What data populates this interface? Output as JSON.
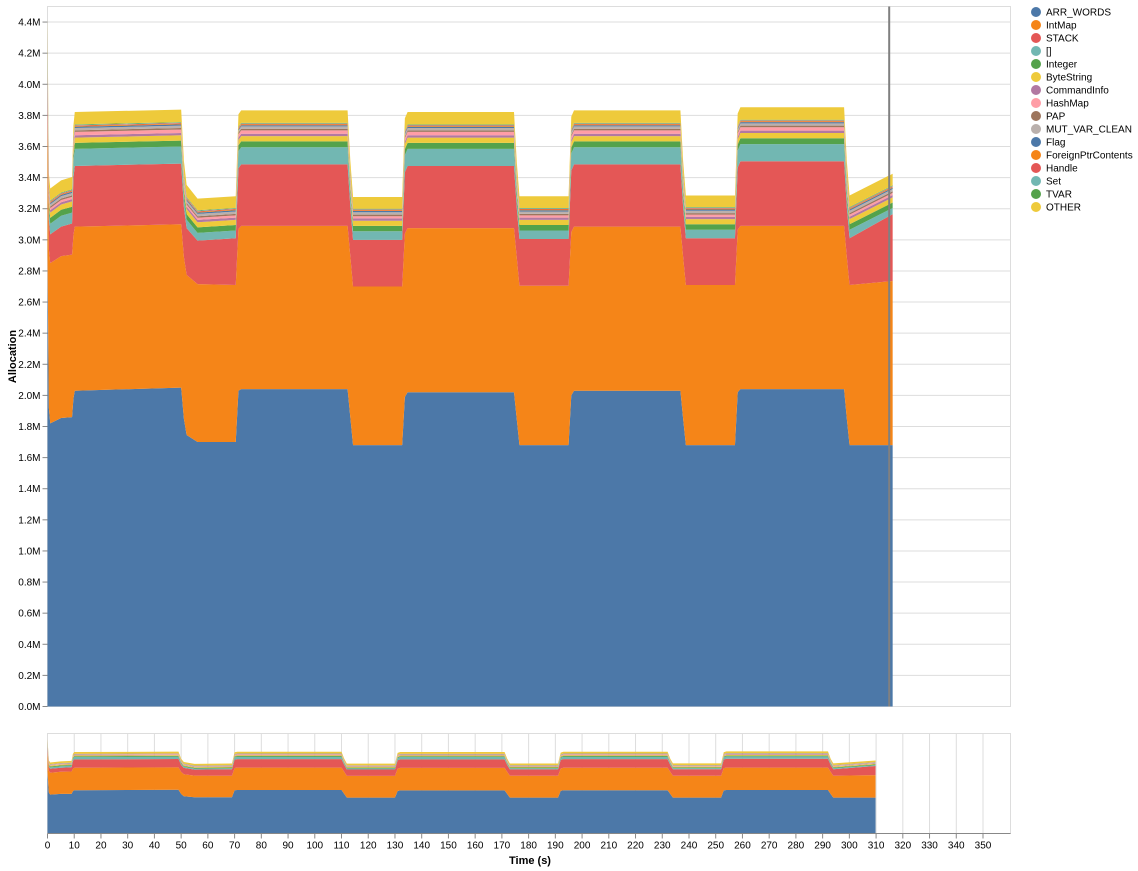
{
  "chart_data": {
    "type": "area",
    "stacked": true,
    "xlabel": "Time (s)",
    "ylabel": "Allocation",
    "x_unit": "s",
    "y_unit": "bytes",
    "main_xlim": [
      0,
      353
    ],
    "main_ylim": [
      0,
      4500000
    ],
    "main_yticks": [
      {
        "value": 0,
        "label": "0.0M"
      },
      {
        "value": 200000,
        "label": "0.2M"
      },
      {
        "value": 400000,
        "label": "0.4M"
      },
      {
        "value": 600000,
        "label": "0.6M"
      },
      {
        "value": 800000,
        "label": "0.8M"
      },
      {
        "value": 1000000,
        "label": "1.0M"
      },
      {
        "value": 1200000,
        "label": "1.2M"
      },
      {
        "value": 1400000,
        "label": "1.4M"
      },
      {
        "value": 1600000,
        "label": "1.6M"
      },
      {
        "value": 1800000,
        "label": "1.8M"
      },
      {
        "value": 2000000,
        "label": "2.0M"
      },
      {
        "value": 2200000,
        "label": "2.2M"
      },
      {
        "value": 2400000,
        "label": "2.4M"
      },
      {
        "value": 2600000,
        "label": "2.6M"
      },
      {
        "value": 2800000,
        "label": "2.8M"
      },
      {
        "value": 3000000,
        "label": "3.0M"
      },
      {
        "value": 3200000,
        "label": "3.2M"
      },
      {
        "value": 3400000,
        "label": "3.4M"
      },
      {
        "value": 3600000,
        "label": "3.6M"
      },
      {
        "value": 3800000,
        "label": "3.8M"
      },
      {
        "value": 4000000,
        "label": "4.0M"
      },
      {
        "value": 4200000,
        "label": "4.2M"
      },
      {
        "value": 4400000,
        "label": "4.4M"
      }
    ],
    "overview_xlim": [
      0,
      350
    ],
    "overview_xticks": [
      0,
      10,
      20,
      30,
      40,
      50,
      60,
      70,
      80,
      90,
      100,
      110,
      120,
      130,
      140,
      150,
      160,
      170,
      180,
      190,
      200,
      210,
      220,
      230,
      240,
      250,
      260,
      270,
      280,
      290,
      300,
      310,
      320,
      330,
      340,
      350
    ],
    "selection_marker_x": 310,
    "legend_position": "right",
    "grid": true,
    "x": [
      0,
      0.5,
      1,
      5,
      9,
      9.5,
      10,
      49,
      50,
      51,
      55,
      69,
      70,
      71,
      110,
      111,
      112,
      130,
      131,
      132,
      171,
      172,
      173,
      191,
      192,
      193,
      232,
      233,
      234,
      252,
      253,
      254,
      292,
      293,
      294,
      309.8
    ],
    "series": [
      {
        "name": "ARR_WORDS",
        "color": "#4c78a8",
        "values": [
          2900000,
          1920000,
          1820000,
          1855000,
          1860000,
          1980000,
          2030000,
          2050000,
          1850000,
          1745000,
          1700000,
          1700000,
          2030000,
          2040000,
          2040000,
          1860000,
          1680000,
          1680000,
          1990000,
          2020000,
          2020000,
          1850000,
          1680000,
          1680000,
          2000000,
          2030000,
          2030000,
          1850000,
          1680000,
          1680000,
          2020000,
          2040000,
          2040000,
          1850000,
          1680000,
          1680000
        ]
      },
      {
        "name": "IntMap",
        "color": "#f58518",
        "values": [
          1000000,
          1020000,
          1030000,
          1040000,
          1045000,
          1050000,
          1055000,
          1050000,
          1040000,
          1030000,
          1015000,
          1010000,
          1040000,
          1050000,
          1050000,
          1035000,
          1020000,
          1020000,
          1050000,
          1055000,
          1055000,
          1040000,
          1025000,
          1025000,
          1050000,
          1055000,
          1055000,
          1040000,
          1030000,
          1030000,
          1045000,
          1050000,
          1050000,
          1040000,
          1030000,
          1055000
        ]
      },
      {
        "name": "STACK",
        "color": "#e45756",
        "values": [
          210000,
          190000,
          185000,
          190000,
          200000,
          370000,
          390000,
          390000,
          320000,
          300000,
          280000,
          300000,
          390000,
          395000,
          395000,
          320000,
          300000,
          300000,
          395000,
          400000,
          400000,
          320000,
          300000,
          300000,
          395000,
          400000,
          400000,
          320000,
          300000,
          300000,
          400000,
          415000,
          415000,
          320000,
          300000,
          430000
        ]
      },
      {
        "name": "[]",
        "color": "#72b7b2",
        "values": [
          80000,
          70000,
          68000,
          70000,
          70000,
          100000,
          110000,
          110000,
          70000,
          55000,
          50000,
          50000,
          110000,
          110000,
          110000,
          70000,
          55000,
          55000,
          110000,
          110000,
          110000,
          70000,
          55000,
          55000,
          110000,
          110000,
          110000,
          70000,
          55000,
          55000,
          110000,
          110000,
          110000,
          70000,
          55000,
          40000
        ]
      },
      {
        "name": "Integer",
        "color": "#54a24b",
        "values": [
          40000,
          38000,
          38000,
          38000,
          38000,
          38000,
          38000,
          38000,
          36000,
          35000,
          35000,
          35000,
          38000,
          38000,
          38000,
          36000,
          35000,
          35000,
          38000,
          38000,
          38000,
          36000,
          35000,
          35000,
          38000,
          38000,
          38000,
          36000,
          35000,
          35000,
          38000,
          38000,
          38000,
          36000,
          35000,
          35000
        ]
      },
      {
        "name": "ByteString",
        "color": "#eeca3b",
        "values": [
          35000,
          34000,
          34000,
          34000,
          34000,
          34000,
          34000,
          34000,
          33000,
          33000,
          33000,
          33000,
          34000,
          34000,
          34000,
          33000,
          33000,
          33000,
          34000,
          34000,
          34000,
          33000,
          33000,
          33000,
          34000,
          34000,
          34000,
          33000,
          33000,
          33000,
          34000,
          34000,
          34000,
          33000,
          33000,
          33000
        ]
      },
      {
        "name": "CommandInfo",
        "color": "#b279a2",
        "values": [
          15000,
          15000,
          15000,
          15000,
          15000,
          15000,
          15000,
          15000,
          15000,
          15000,
          15000,
          15000,
          15000,
          15000,
          15000,
          15000,
          15000,
          15000,
          15000,
          15000,
          15000,
          15000,
          15000,
          15000,
          15000,
          15000,
          15000,
          15000,
          15000,
          15000,
          15000,
          15000,
          15000,
          15000,
          15000,
          15000
        ]
      },
      {
        "name": "HashMap",
        "color": "#ff9da6",
        "values": [
          15000,
          14000,
          14000,
          14000,
          14000,
          20000,
          22000,
          22000,
          15000,
          14000,
          14000,
          14000,
          22000,
          22000,
          22000,
          15000,
          14000,
          14000,
          22000,
          22000,
          22000,
          15000,
          14000,
          14000,
          22000,
          22000,
          22000,
          15000,
          14000,
          14000,
          22000,
          22000,
          22000,
          15000,
          14000,
          14000
        ]
      },
      {
        "name": "PAP",
        "color": "#9d755d",
        "values": [
          10000,
          10000,
          10000,
          10000,
          10000,
          10000,
          10000,
          10000,
          10000,
          10000,
          10000,
          10000,
          10000,
          10000,
          10000,
          10000,
          10000,
          10000,
          10000,
          10000,
          10000,
          10000,
          10000,
          10000,
          10000,
          10000,
          10000,
          10000,
          10000,
          10000,
          10000,
          10000,
          10000,
          10000,
          10000,
          10000
        ]
      },
      {
        "name": "MUT_VAR_CLEAN",
        "color": "#bab0ac",
        "values": [
          15000,
          15000,
          15000,
          15000,
          15000,
          15000,
          15000,
          15000,
          15000,
          15000,
          15000,
          15000,
          15000,
          15000,
          15000,
          15000,
          15000,
          15000,
          15000,
          15000,
          15000,
          15000,
          15000,
          15000,
          15000,
          15000,
          15000,
          15000,
          15000,
          15000,
          15000,
          15000,
          15000,
          15000,
          15000,
          15000
        ]
      },
      {
        "name": "Flag",
        "color": "#4c78a8",
        "values": [
          8000,
          8000,
          8000,
          8000,
          8000,
          8000,
          8000,
          8000,
          8000,
          8000,
          8000,
          8000,
          8000,
          8000,
          8000,
          8000,
          8000,
          8000,
          8000,
          8000,
          8000,
          8000,
          8000,
          8000,
          8000,
          8000,
          8000,
          8000,
          8000,
          8000,
          8000,
          8000,
          8000,
          8000,
          8000,
          8000
        ]
      },
      {
        "name": "ForeignPtrContents",
        "color": "#f58518",
        "values": [
          5000,
          5000,
          5000,
          5000,
          5000,
          5000,
          5000,
          5000,
          5000,
          5000,
          5000,
          5000,
          5000,
          5000,
          5000,
          5000,
          5000,
          5000,
          5000,
          5000,
          5000,
          5000,
          5000,
          5000,
          5000,
          5000,
          5000,
          5000,
          5000,
          5000,
          5000,
          5000,
          5000,
          5000,
          5000,
          5000
        ]
      },
      {
        "name": "Handle",
        "color": "#e45756",
        "values": [
          4000,
          4000,
          4000,
          4000,
          4000,
          4000,
          4000,
          4000,
          4000,
          4000,
          4000,
          4000,
          4000,
          4000,
          4000,
          4000,
          4000,
          4000,
          4000,
          4000,
          4000,
          4000,
          4000,
          4000,
          4000,
          4000,
          4000,
          4000,
          4000,
          4000,
          4000,
          4000,
          4000,
          4000,
          4000,
          4000
        ]
      },
      {
        "name": "Set",
        "color": "#72b7b2",
        "values": [
          3000,
          3000,
          3000,
          3000,
          3000,
          3000,
          3000,
          3000,
          3000,
          3000,
          3000,
          3000,
          3000,
          3000,
          3000,
          3000,
          3000,
          3000,
          3000,
          3000,
          3000,
          3000,
          3000,
          3000,
          3000,
          3000,
          3000,
          3000,
          3000,
          3000,
          3000,
          3000,
          3000,
          3000,
          3000,
          3000
        ]
      },
      {
        "name": "TVAR",
        "color": "#54a24b",
        "values": [
          3000,
          3000,
          3000,
          3000,
          3000,
          3000,
          3000,
          3000,
          3000,
          3000,
          3000,
          3000,
          3000,
          3000,
          3000,
          3000,
          3000,
          3000,
          3000,
          3000,
          3000,
          3000,
          3000,
          3000,
          3000,
          3000,
          3000,
          3000,
          3000,
          3000,
          3000,
          3000,
          3000,
          3000,
          3000,
          3000
        ]
      },
      {
        "name": "OTHER",
        "color": "#eeca3b",
        "values": [
          80000,
          78000,
          78000,
          78000,
          80000,
          80000,
          80000,
          80000,
          80000,
          78000,
          75000,
          75000,
          80000,
          80000,
          80000,
          78000,
          75000,
          75000,
          80000,
          80000,
          80000,
          78000,
          75000,
          75000,
          80000,
          80000,
          80000,
          78000,
          75000,
          75000,
          80000,
          80000,
          80000,
          78000,
          75000,
          75000
        ]
      }
    ]
  }
}
